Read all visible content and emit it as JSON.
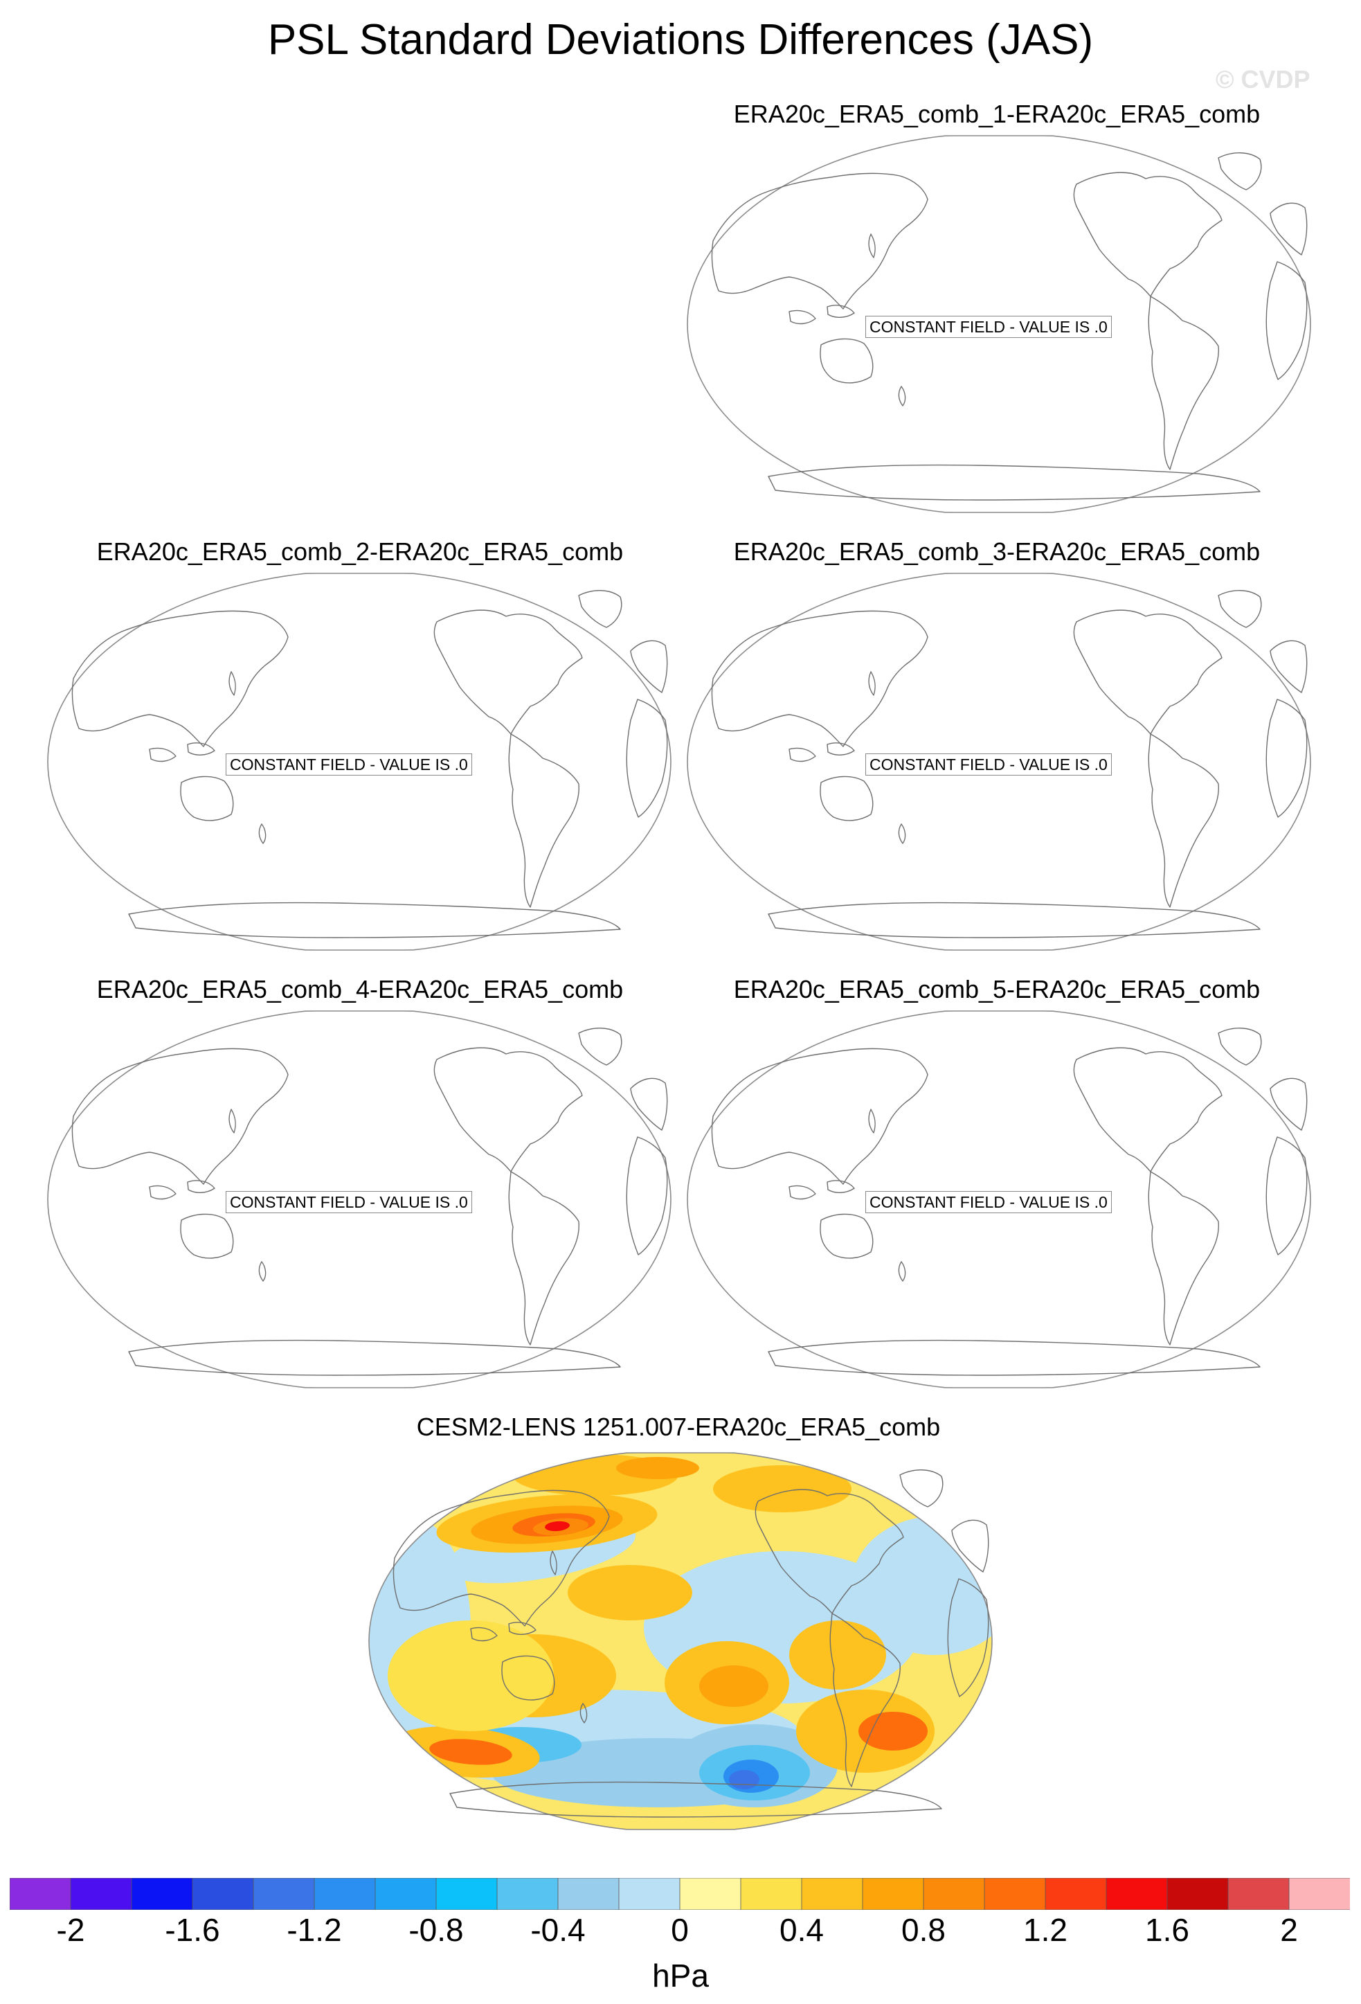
{
  "title": "PSL Standard Deviations Differences (JAS)",
  "watermark": "© CVDP",
  "panels": [
    {
      "title": "ERA20c_ERA5_comb_1-ERA20c_ERA5_comb",
      "note": "CONSTANT FIELD - VALUE IS .0"
    },
    {
      "title": "ERA20c_ERA5_comb_2-ERA20c_ERA5_comb",
      "note": "CONSTANT FIELD - VALUE IS .0"
    },
    {
      "title": "ERA20c_ERA5_comb_3-ERA20c_ERA5_comb",
      "note": "CONSTANT FIELD - VALUE IS .0"
    },
    {
      "title": "ERA20c_ERA5_comb_4-ERA20c_ERA5_comb",
      "note": "CONSTANT FIELD - VALUE IS .0"
    },
    {
      "title": "ERA20c_ERA5_comb_5-ERA20c_ERA5_comb",
      "note": "CONSTANT FIELD - VALUE IS .0"
    },
    {
      "title": "CESM2-LENS 1251.007-ERA20c_ERA5_comb"
    }
  ],
  "colorbar": {
    "units": "hPa",
    "colors": [
      "#8a2be2",
      "#4b0ff0",
      "#0a14f5",
      "#2a4fe0",
      "#3a74e6",
      "#2a8ff0",
      "#1fa3f5",
      "#0cc0fa",
      "#56c3f0",
      "#98cdec",
      "#b9e0f5",
      "#fff8a0",
      "#fde14a",
      "#fdc21f",
      "#fca40a",
      "#fc8a0a",
      "#fd6d0c",
      "#fb3c12",
      "#f50c0c",
      "#c80a0a",
      "#e0474a",
      "#fdb4b8"
    ],
    "tick_labels": [
      "-2",
      "-1.6",
      "-1.2",
      "-0.8",
      "-0.4",
      "0",
      "0.4",
      "0.8",
      "1.2",
      "1.6",
      "2"
    ]
  }
}
